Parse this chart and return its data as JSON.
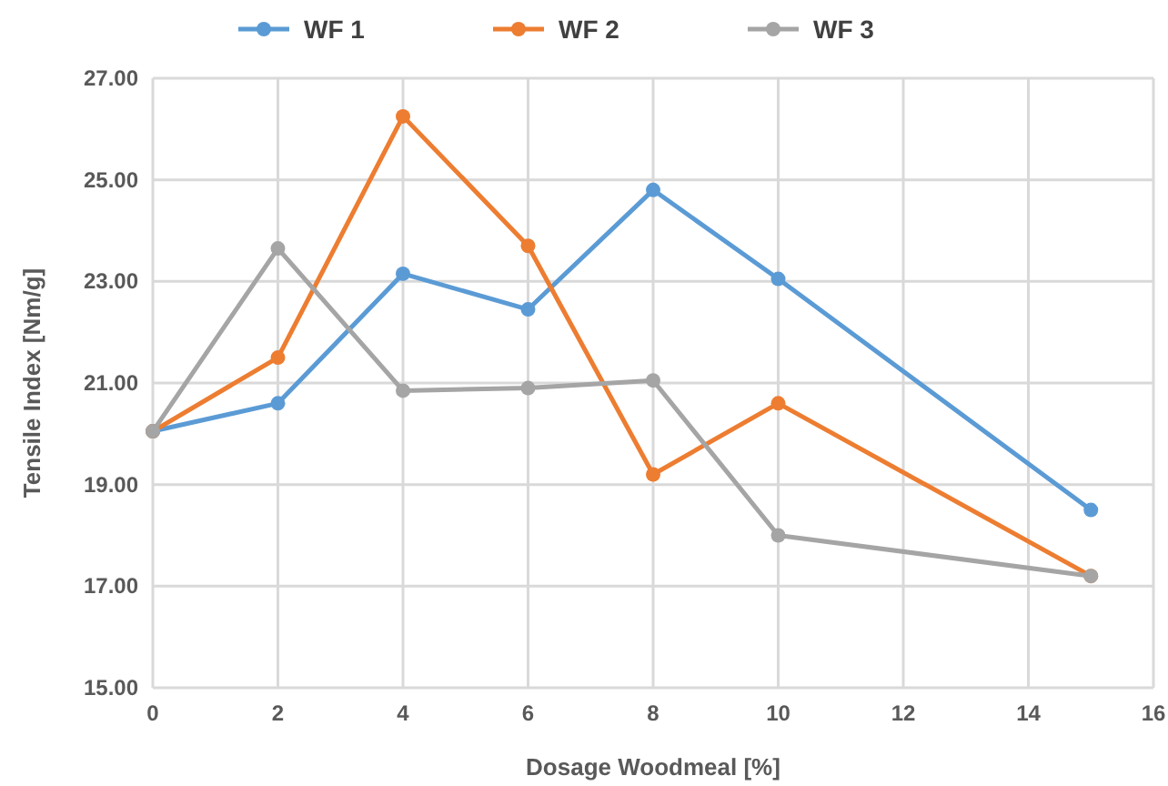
{
  "chart_data": {
    "type": "line",
    "xlabel": "Dosage Woodmeal [%]",
    "ylabel": "Tensile Index [Nm/g]",
    "x": [
      0,
      2,
      4,
      6,
      8,
      10,
      15
    ],
    "series": [
      {
        "name": "WF 1",
        "color": "#5b9bd5",
        "values": [
          20.05,
          20.6,
          23.15,
          22.45,
          24.8,
          23.05,
          18.5
        ]
      },
      {
        "name": "WF 2",
        "color": "#ed7d31",
        "values": [
          20.05,
          21.5,
          26.25,
          23.7,
          19.2,
          20.6,
          17.2
        ]
      },
      {
        "name": "WF 3",
        "color": "#a5a5a5",
        "values": [
          20.05,
          23.65,
          20.85,
          20.9,
          21.05,
          18.0,
          17.2
        ]
      }
    ],
    "xlim": [
      0,
      16
    ],
    "xticks": [
      0,
      2,
      4,
      6,
      8,
      10,
      12,
      14,
      16
    ],
    "ylim": [
      15,
      27
    ],
    "yticks": [
      {
        "value": 15,
        "label": "15.00"
      },
      {
        "value": 17,
        "label": "17.00"
      },
      {
        "value": 19,
        "label": "19.00"
      },
      {
        "value": 21,
        "label": "21.00"
      },
      {
        "value": 23,
        "label": "23.00"
      },
      {
        "value": 25,
        "label": "25.00"
      },
      {
        "value": 27,
        "label": "27.00"
      }
    ],
    "grid": true,
    "legend": "top",
    "marker": "circle",
    "line_style": "solid"
  }
}
